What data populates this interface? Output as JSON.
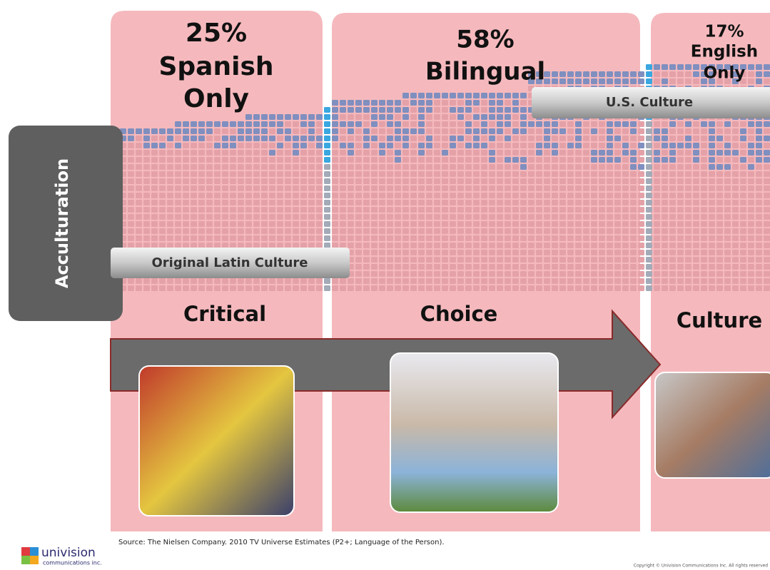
{
  "panels": [
    {
      "percent": "25%",
      "label_lines": [
        "Spanish",
        "Only"
      ],
      "stage": "Critical"
    },
    {
      "percent": "58%",
      "label_lines": [
        "Bilingual"
      ],
      "stage": "Choice"
    },
    {
      "percent": "17%",
      "label_lines": [
        "English",
        "Only"
      ],
      "stage": "Culture"
    }
  ],
  "axis_label": "Acculturation",
  "culture_labels": {
    "original": "Original Latin Culture",
    "us": "U.S. Culture"
  },
  "source": "Source: The Nielsen Company.  2010 TV Universe Estimates (P2+; Language of the Person).",
  "copyright": "Copyright © Univision Communications Inc. All rights reserved",
  "logo": {
    "name": "univision",
    "subtitle": "communications inc."
  }
}
